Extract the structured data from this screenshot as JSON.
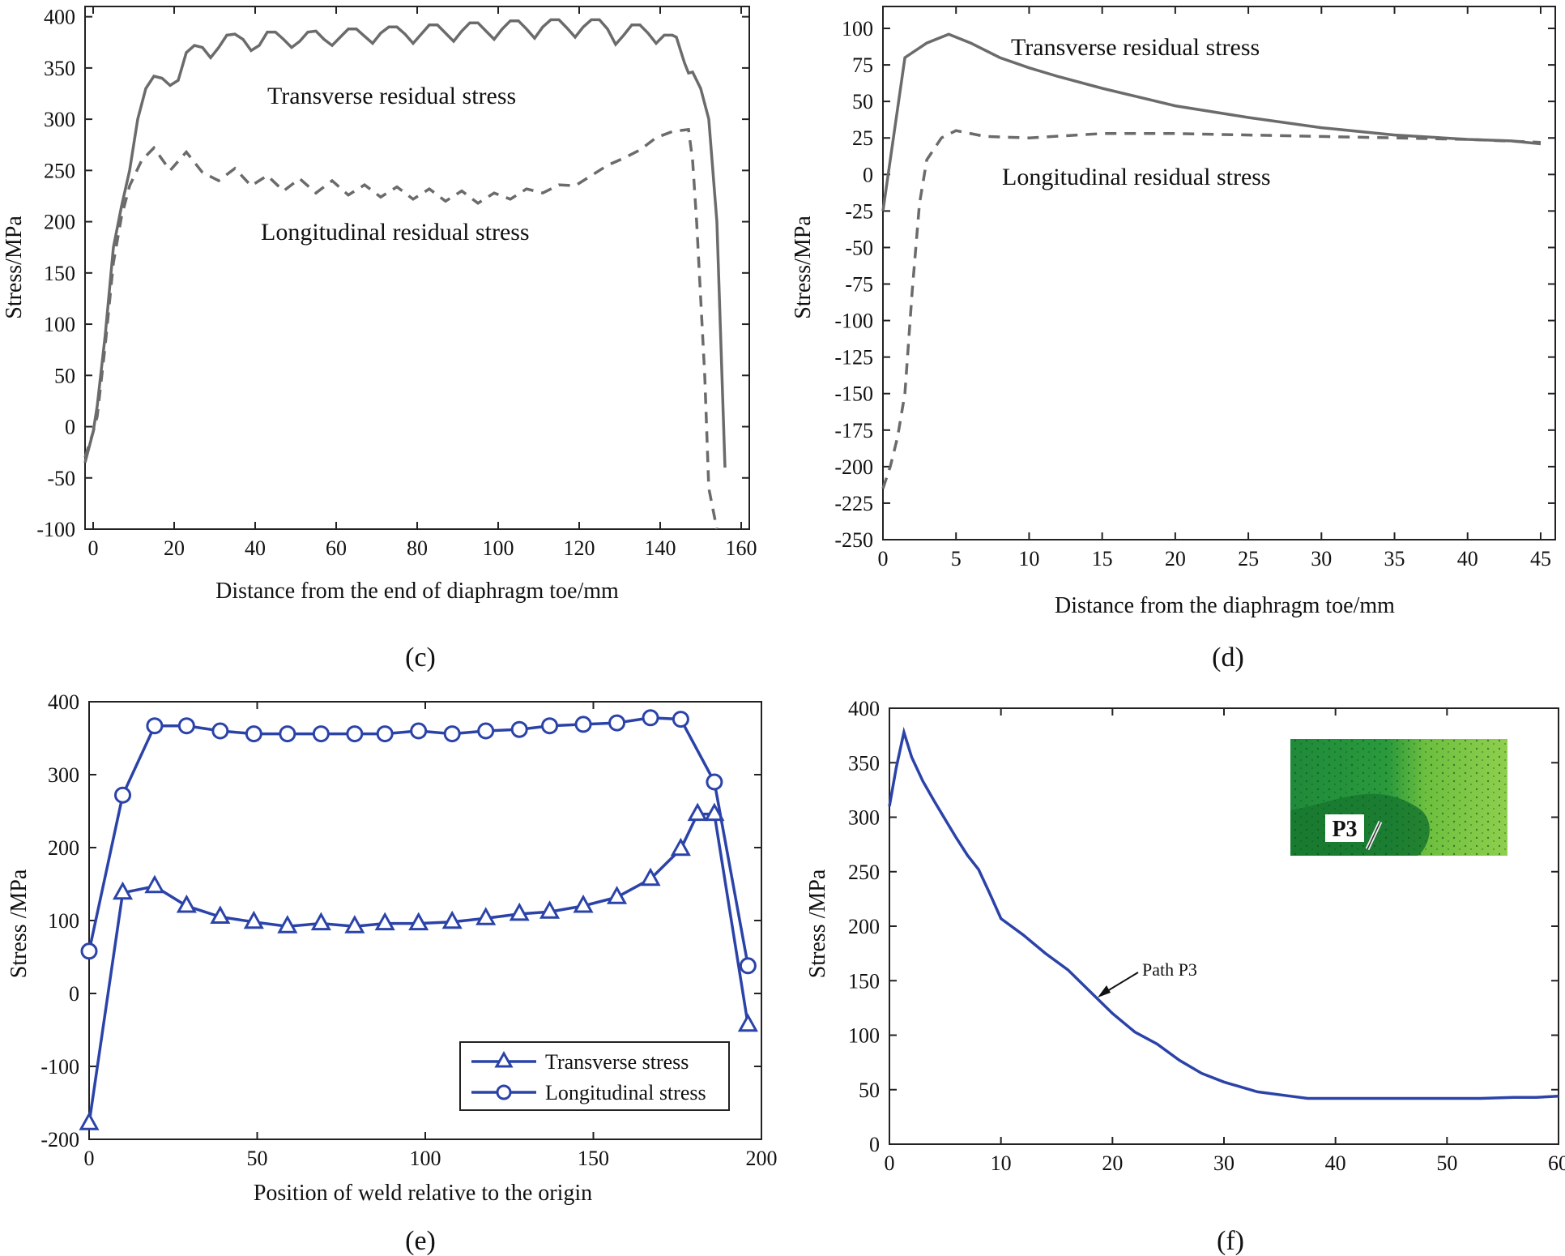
{
  "chart_data": [
    {
      "id": "c",
      "type": "line",
      "panel_label": "(c)",
      "xlabel": "Distance from the end of diaphragm toe/mm",
      "ylabel": "Stress/MPa",
      "xlim": [
        -2,
        162
      ],
      "ylim": [
        -100,
        410
      ],
      "xticks": [
        0,
        20,
        40,
        60,
        80,
        100,
        120,
        140,
        160
      ],
      "yticks": [
        -100,
        -50,
        0,
        50,
        100,
        150,
        200,
        250,
        300,
        350,
        400
      ],
      "grid": false,
      "annotations": [
        "Transverse residual stress",
        "Longitudinal residual stress"
      ],
      "series": [
        {
          "name": "Transverse residual stress",
          "style": "solid",
          "x": [
            -2,
            0,
            1,
            3,
            5,
            7,
            9,
            11,
            13,
            15,
            17,
            19,
            21,
            23,
            25,
            27,
            29,
            31,
            33,
            35,
            37,
            39,
            41,
            43,
            45,
            47,
            49,
            51,
            53,
            55,
            57,
            59,
            61,
            63,
            65,
            67,
            69,
            71,
            73,
            75,
            77,
            79,
            81,
            83,
            85,
            87,
            89,
            91,
            93,
            95,
            97,
            99,
            101,
            103,
            105,
            107,
            109,
            111,
            113,
            115,
            117,
            119,
            121,
            123,
            125,
            127,
            129,
            131,
            133,
            135,
            137,
            139,
            141,
            143,
            144,
            146,
            147,
            148,
            150,
            152,
            154,
            156
          ],
          "y": [
            -35,
            -5,
            20,
            90,
            175,
            215,
            250,
            300,
            330,
            342,
            340,
            333,
            338,
            365,
            372,
            370,
            360,
            370,
            382,
            383,
            378,
            367,
            372,
            385,
            385,
            378,
            370,
            376,
            385,
            386,
            378,
            372,
            380,
            388,
            388,
            381,
            374,
            384,
            390,
            390,
            383,
            374,
            383,
            392,
            392,
            384,
            376,
            386,
            394,
            394,
            386,
            378,
            388,
            396,
            396,
            388,
            379,
            390,
            397,
            397,
            389,
            380,
            390,
            397,
            397,
            388,
            373,
            382,
            392,
            392,
            384,
            374,
            382,
            382,
            380,
            355,
            345,
            346,
            330,
            300,
            200,
            -40
          ]
        },
        {
          "name": "Longitudinal residual stress",
          "style": "dashed",
          "x": [
            -2,
            0,
            1,
            3,
            5,
            7,
            9,
            12,
            15,
            19,
            23,
            27,
            31,
            35,
            39,
            43,
            47,
            51,
            55,
            59,
            63,
            67,
            71,
            75,
            79,
            83,
            87,
            91,
            95,
            99,
            103,
            107,
            111,
            115,
            119,
            123,
            127,
            131,
            135,
            139,
            143,
            147,
            148,
            149,
            151,
            152,
            154
          ],
          "y": [
            -30,
            -5,
            10,
            80,
            160,
            205,
            235,
            260,
            272,
            250,
            268,
            248,
            240,
            252,
            235,
            245,
            230,
            242,
            228,
            240,
            226,
            236,
            224,
            234,
            222,
            232,
            220,
            230,
            218,
            228,
            222,
            232,
            228,
            236,
            235,
            245,
            255,
            262,
            270,
            282,
            288,
            290,
            260,
            200,
            50,
            -60,
            -100
          ]
        }
      ]
    },
    {
      "id": "d",
      "type": "line",
      "panel_label": "(d)",
      "xlabel": "Distance from the diaphragm toe/mm",
      "ylabel": "Stress/MPa",
      "xlim": [
        0,
        46
      ],
      "ylim": [
        -250,
        115
      ],
      "xticks": [
        0,
        5,
        10,
        15,
        20,
        25,
        30,
        35,
        40,
        45
      ],
      "yticks": [
        -250,
        -225,
        -200,
        -175,
        -150,
        -125,
        -100,
        -75,
        -50,
        -25,
        0,
        25,
        50,
        75,
        100
      ],
      "grid": false,
      "annotations": [
        "Transverse residual stress",
        "Longitudinal residual stress"
      ],
      "series": [
        {
          "name": "Transverse residual stress",
          "style": "solid",
          "x": [
            0,
            1.5,
            3,
            4.5,
            6,
            8,
            10,
            12,
            15,
            20,
            25,
            30,
            35,
            40,
            43,
            45
          ],
          "y": [
            -25,
            80,
            90,
            96,
            90,
            80,
            73,
            67,
            59,
            47,
            39,
            32,
            27,
            24,
            23,
            21
          ]
        },
        {
          "name": "Longitudinal residual stress",
          "style": "dashed",
          "x": [
            0,
            0.5,
            1,
            1.5,
            2,
            2.5,
            3,
            4,
            5,
            7,
            10,
            15,
            20,
            25,
            30,
            35,
            40,
            45
          ],
          "y": [
            -215,
            -200,
            -180,
            -150,
            -80,
            -20,
            10,
            25,
            30,
            26,
            25,
            28,
            28,
            27,
            26,
            25,
            24,
            22
          ]
        }
      ]
    },
    {
      "id": "e",
      "type": "line",
      "panel_label": "(e)",
      "xlabel": "Position of weld relative to the origin",
      "ylabel": "Stress /MPa",
      "xlim": [
        0,
        200
      ],
      "ylim": [
        -200,
        400
      ],
      "xticks": [
        0,
        50,
        100,
        150,
        200
      ],
      "yticks": [
        -200,
        -100,
        0,
        100,
        200,
        300,
        400
      ],
      "grid": false,
      "legend": "bottom-right",
      "series": [
        {
          "name": "Transverse stress",
          "marker": "triangle",
          "x": [
            0,
            10,
            19.5,
            29,
            39,
            49,
            59,
            69,
            79,
            88,
            98,
            108,
            118,
            128,
            137,
            147,
            157,
            167,
            176,
            181,
            186,
            196
          ],
          "y": [
            -178,
            138,
            147,
            120,
            105,
            98,
            92,
            96,
            92,
            96,
            96,
            98,
            103,
            109,
            112,
            120,
            132,
            157,
            198,
            246,
            246,
            -43
          ]
        },
        {
          "name": "Longitudinal stress",
          "marker": "circle",
          "x": [
            0,
            10,
            19.5,
            29,
            39,
            49,
            59,
            69,
            79,
            88,
            98,
            108,
            118,
            128,
            137,
            147,
            157,
            167,
            176,
            186,
            196
          ],
          "y": [
            58,
            272,
            367,
            367,
            360,
            356,
            356,
            356,
            356,
            356,
            360,
            356,
            360,
            362,
            367,
            369,
            371,
            378,
            376,
            290,
            38
          ]
        }
      ]
    },
    {
      "id": "f",
      "type": "line",
      "panel_label": "(f)",
      "xlabel": "",
      "ylabel": "Stress /MPa",
      "xlim": [
        0,
        60
      ],
      "ylim": [
        0,
        400
      ],
      "xticks": [
        0,
        10,
        20,
        30,
        40,
        50,
        60
      ],
      "yticks": [
        0,
        50,
        100,
        150,
        200,
        250,
        300,
        350,
        400
      ],
      "grid": false,
      "annotations": [
        "Path P3"
      ],
      "inset_label": "P3",
      "series": [
        {
          "name": "Path P3",
          "x": [
            0,
            0.6,
            1.3,
            2,
            3,
            4,
            5,
            6,
            7,
            8,
            9,
            10,
            12,
            14,
            16,
            18,
            20,
            22,
            24,
            26,
            28,
            30,
            33,
            36,
            37.5,
            40,
            45,
            50,
            53,
            56,
            58,
            60
          ],
          "y": [
            310,
            345,
            378,
            355,
            333,
            315,
            298,
            281,
            265,
            252,
            230,
            207,
            192,
            175,
            160,
            140,
            120,
            103,
            92,
            77,
            65,
            57,
            48,
            44,
            42,
            42,
            42,
            42,
            42,
            43,
            43,
            44
          ]
        }
      ]
    }
  ]
}
